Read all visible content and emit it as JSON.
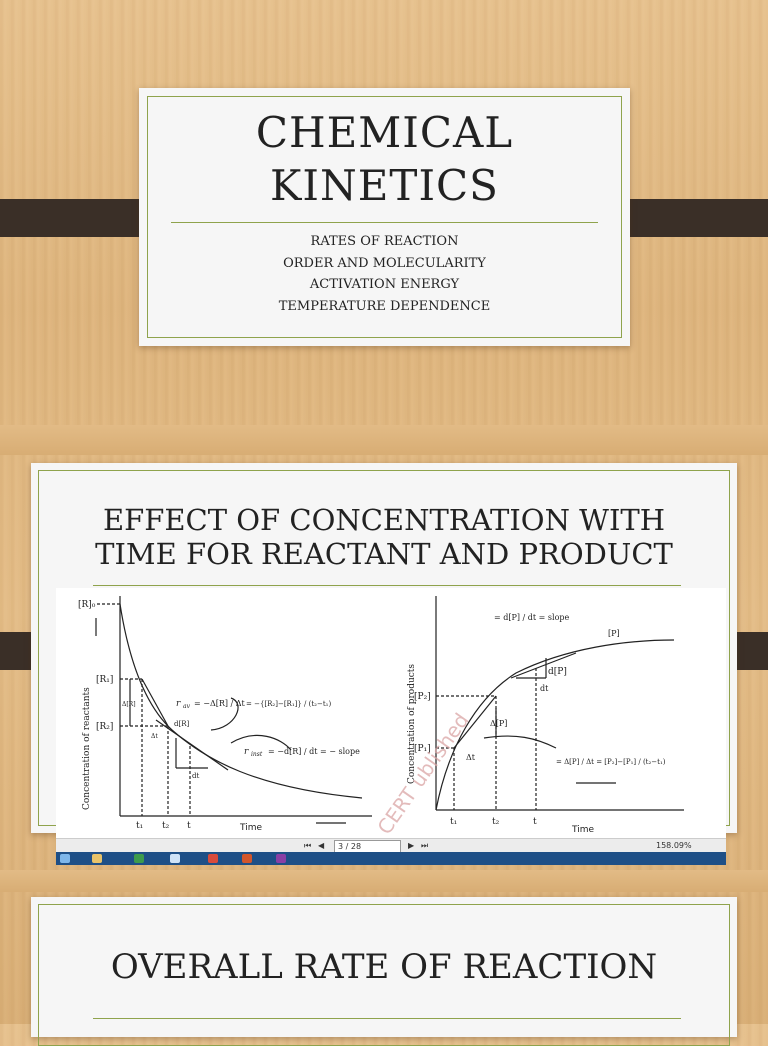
{
  "slide1": {
    "title_line1": "CHEMICAL",
    "title_line2": "KINETICS",
    "subtitles": [
      "RATES OF REACTION",
      "ORDER  AND MOLECULARITY",
      "ACTIVATION ENERGY",
      "TEMPERATURE DEPENDENCE"
    ]
  },
  "slide2": {
    "title_line1": "EFFECT OF CONCENTRATION WITH",
    "title_line2": "TIME FOR REACTANT AND PRODUCT",
    "left_graph": {
      "y_axis_label": "Concentration of reactants",
      "x_axis_label": "Time",
      "r0": "[R]₀",
      "r1": "[R₁]",
      "r2": "[R₂]",
      "delta_r": "Δ[R]",
      "delta_t": "Δt",
      "dR": "d[R]",
      "dt": "dt",
      "t1": "t₁",
      "t2": "t₂",
      "t": "t",
      "r_av_label": "r",
      "r_av_sub": "av",
      "r_av_eq1": "= −Δ[R] / Δt",
      "r_av_eq2": "= −{[R₂]−[R₁]} / (t₂−t₁)",
      "r_inst_label": "r",
      "r_inst_sub": "inst",
      "r_inst_eq": "= −d[R] / dt = − slope"
    },
    "right_graph": {
      "y_axis_label": "Concentration of products",
      "x_axis_label": "Time",
      "p_label": "[P]",
      "p1": "[P₁]",
      "p2": "[P₂]",
      "delta_p": "Δ[P]",
      "delta_t": "Δt",
      "dP": "d[P]",
      "dt": "dt",
      "t1": "t₁",
      "t2": "t₂",
      "t": "t",
      "r_inst_eq": "= d[P] / dt = slope",
      "r_av_eq": "= Δ[P] / Δt = [P₂]−[P₁] / (t₂−t₁)"
    },
    "watermark": "CERT ublished",
    "pdf_toolbar": {
      "page_box": "3 / 28",
      "zoom": "158.09%"
    }
  },
  "slide3": {
    "title": "OVERALL RATE OF REACTION"
  },
  "colors": {
    "accent_line": "#8fa34c",
    "dark_bar": "#3a2f27",
    "slide_bg": "#f6f6f6",
    "taskbar": "#1e4f86"
  }
}
